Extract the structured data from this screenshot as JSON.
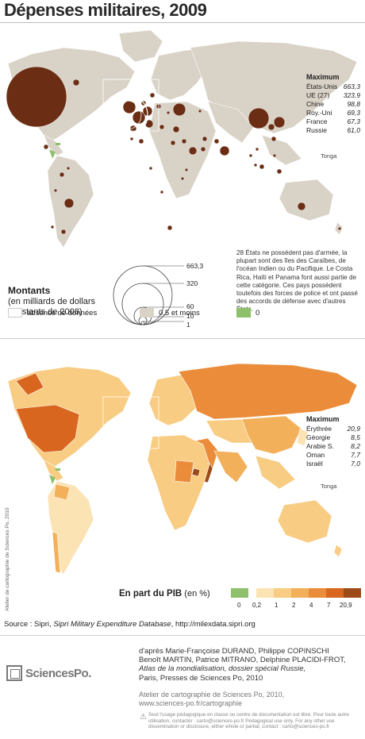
{
  "header": {
    "title": "Dépenses militaires, 2009"
  },
  "map1": {
    "max_title": "Maximum",
    "max_rows": [
      {
        "country": "États-Unis",
        "value": "663,3"
      },
      {
        "country": "UE (27)",
        "value": "323,9"
      },
      {
        "country": "Chine",
        "value": "98,8"
      },
      {
        "country": "Roy.-Uni",
        "value": "69,3"
      },
      {
        "country": "France",
        "value": "67,3"
      },
      {
        "country": "Russie",
        "value": "61,0"
      }
    ],
    "tonga": "Tonga",
    "note": "28 États ne possèdent pas d'armée, la plupart sont des îles des Caraïbes, de l'océan Indien ou du Pacifique. Le Costa Rica, Haïti et Panama font aussi partie de cette catégorie. Ces pays possèdent toutefois des forces de police et ont passé des accords de défense avec d'autres États.",
    "montants_title": "Montants",
    "montants_sub": "(en milliards de dollars constants de 2008)",
    "scale": [
      "663,3",
      "320",
      "60",
      "10",
      "1"
    ],
    "keys": [
      {
        "label": "absence de données",
        "color": "#ffffff"
      },
      {
        "label": "0,5 et moins",
        "color": "#d9d2c7"
      },
      {
        "label": "0",
        "color": "#8dc06b"
      }
    ],
    "colors": {
      "land": "#d9d2c7",
      "circle": "#6b2e14",
      "sea": "#ffffff",
      "zero": "#8dc06b"
    }
  },
  "map2": {
    "max_title": "Maximum",
    "max_rows": [
      {
        "country": "Érythrée",
        "value": "20,9"
      },
      {
        "country": "Géorgie",
        "value": "8,5"
      },
      {
        "country": "Arabie S.",
        "value": "8,2"
      },
      {
        "country": "Oman",
        "value": "7,7"
      },
      {
        "country": "Israël",
        "value": "7,0"
      }
    ],
    "tonga": "Tonga",
    "pib_title": "En part du PIB",
    "pib_unit": "(en %)",
    "pib_breaks": [
      "0",
      "0,2",
      "1",
      "2",
      "4",
      "7",
      "20,9"
    ],
    "pib_colors": [
      "#8dc06b",
      "#fbe3b4",
      "#f8cc83",
      "#f3b05a",
      "#eb8c3a",
      "#d9661f",
      "#9c4a17"
    ]
  },
  "vertical_credit": "Atelier de cartographie de Sciences Po, 2010",
  "source": {
    "prefix": "Source : Sipri, ",
    "title": "Sipri Military Expenditure Database",
    "suffix": ", http://milexdata.sipri.org"
  },
  "credits": {
    "line1": "d'après Marie-Françoise DURAND, Philippe COPINSCHI",
    "line2": "Benoît MARTIN, Patrice MITRANO, Delphine PLACIDI-FROT,",
    "line3": "Atlas de la mondialisation, dossier spécial Russie,",
    "line4": "Paris, Presses de Sciences Po, 2010"
  },
  "atelier": {
    "line1": "Atelier de cartographie de Sciences Po, 2010,",
    "line2": "www.sciences-po.fr/cartographie"
  },
  "usage": "Seul l'usage pédagogique en classe ou centre de documentation est libre. Pour toute autre utilisation, contacter : carto@sciences-po.fr Pedagogical use only. For any other use dissemination or disclosure, either whole or partial, contact : carto@sciences-po.fr",
  "logo": "SciencesPo."
}
